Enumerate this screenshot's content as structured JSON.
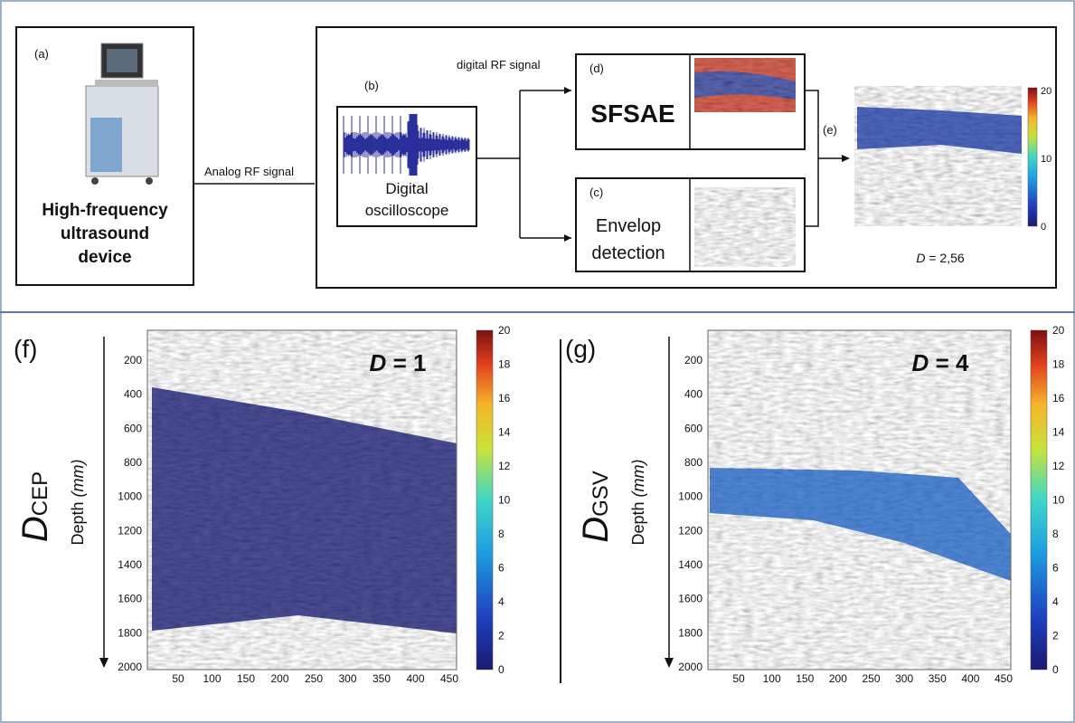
{
  "panel_a": {
    "label": "(a)",
    "title": [
      "High-frequency",
      "ultrasound",
      "device"
    ]
  },
  "analog_signal": "Analog RF signal",
  "digital_signal": "digital RF signal",
  "panel_b": {
    "label": "(b)",
    "title": [
      "Digital",
      "oscilloscope"
    ]
  },
  "panel_d": {
    "label": "(d)",
    "title": "SFSAE"
  },
  "panel_c": {
    "label": "(c)",
    "title": [
      "Envelop",
      "detection"
    ]
  },
  "panel_e": {
    "label": "(e)",
    "colorbar_ticks": [
      0,
      10,
      20
    ],
    "result": {
      "symbol": "D",
      "text": "= 2,56"
    }
  },
  "plots": [
    {
      "label": "(f)",
      "symbol": "D",
      "subscript": "CEP",
      "axis_label": "Depth",
      "axis_unit": "(mm)",
      "result": {
        "symbol": "D",
        "text": "= 1"
      },
      "yticks": [
        200,
        400,
        600,
        800,
        1000,
        1200,
        1400,
        1600,
        1800,
        2000
      ],
      "xticks": [
        50,
        100,
        150,
        200,
        250,
        300,
        350,
        400,
        450
      ],
      "colorbar_ticks": [
        0,
        2,
        4,
        6,
        8,
        10,
        12,
        14,
        16,
        18,
        20
      ]
    },
    {
      "label": "(g)",
      "symbol": "D",
      "subscript": "GSV",
      "axis_label": "Depth",
      "axis_unit": "(mm)",
      "result": {
        "symbol": "D",
        "text": "= 4"
      },
      "yticks": [
        200,
        400,
        600,
        800,
        1000,
        1200,
        1400,
        1600,
        1800,
        2000
      ],
      "xticks": [
        50,
        100,
        150,
        200,
        250,
        300,
        350,
        400,
        450
      ],
      "colorbar_ticks": [
        0,
        2,
        4,
        6,
        8,
        10,
        12,
        14,
        16,
        18,
        20
      ]
    }
  ]
}
